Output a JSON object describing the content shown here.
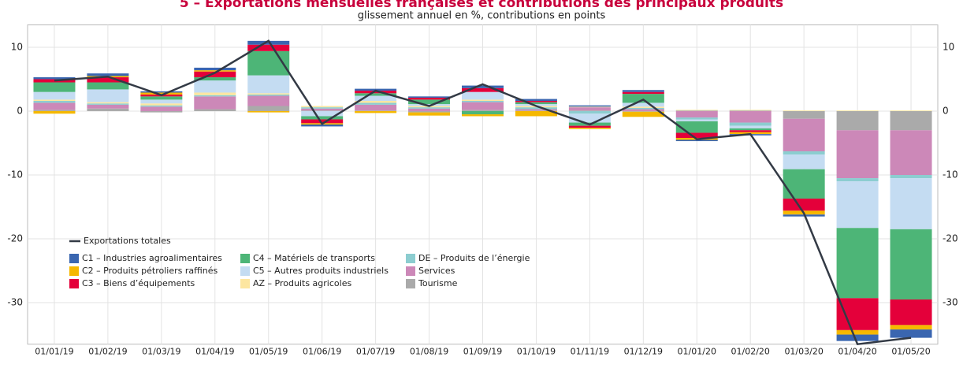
{
  "chart_data": {
    "type": "bar",
    "title": "5 – Exportations mensuelles françaises et contributions des principaux produits",
    "subtitle": "glissement annuel en %, contributions en points",
    "categories": [
      "01/01/19",
      "01/02/19",
      "01/03/19",
      "01/04/19",
      "01/05/19",
      "01/06/19",
      "01/07/19",
      "01/08/19",
      "01/09/19",
      "01/10/19",
      "01/11/19",
      "01/12/19",
      "01/01/20",
      "01/02/20",
      "01/03/20",
      "01/04/20",
      "01/05/20"
    ],
    "series": [
      {
        "name": "C1 – Industries agroalimentaires",
        "color": "#3a66b0",
        "values": [
          0.3,
          0.4,
          0.2,
          0.4,
          0.6,
          -0.3,
          0.3,
          0.2,
          0.4,
          0.3,
          0.2,
          0.3,
          -0.2,
          -0.2,
          -0.3,
          -1.0,
          -1.3
        ]
      },
      {
        "name": "C2 – Produits pétroliers raffinés",
        "color": "#f5b800",
        "values": [
          -0.4,
          0.2,
          0.3,
          0.2,
          -0.2,
          -0.2,
          -0.3,
          -0.5,
          -0.3,
          -0.8,
          -0.2,
          -0.8,
          -0.3,
          -0.3,
          -0.6,
          -0.7,
          -0.7
        ]
      },
      {
        "name": "C3 – Biens d’équipements",
        "color": "#e4003a",
        "values": [
          0.5,
          0.8,
          0.3,
          0.9,
          1.0,
          -0.6,
          0.4,
          0.3,
          0.6,
          0.2,
          -0.3,
          0.3,
          -0.8,
          -0.3,
          -1.9,
          -5.0,
          -4.0
        ]
      },
      {
        "name": "C4 – Matériels de transports",
        "color": "#4db577",
        "values": [
          1.5,
          1.1,
          0.5,
          0.5,
          3.8,
          -0.5,
          0.4,
          0.7,
          -0.5,
          0.3,
          -0.5,
          1.4,
          -1.8,
          -0.3,
          -4.6,
          -11.0,
          -11.0
        ]
      },
      {
        "name": "C5 – Autres produits industriels",
        "color": "#c4dcf2",
        "values": [
          1.2,
          2.0,
          0.6,
          1.9,
          2.8,
          -0.8,
          0.8,
          0.3,
          1.2,
          0.3,
          -1.4,
          0.6,
          -0.3,
          -0.4,
          -2.3,
          -7.3,
          -8.0
        ]
      },
      {
        "name": "AZ – Produits agricoles",
        "color": "#fde6a0",
        "values": [
          0.2,
          0.2,
          0.3,
          0.4,
          0.2,
          0.2,
          0.3,
          0.2,
          0.2,
          0.2,
          0.1,
          0.2,
          0.1,
          0.1,
          0.1,
          0.1,
          0.1
        ]
      },
      {
        "name": "DE – Produits de l’énergie",
        "color": "#8ccdd0",
        "values": [
          0.3,
          0.2,
          0.2,
          0.2,
          0.2,
          0.2,
          0.3,
          0.2,
          0.2,
          0.3,
          -0.4,
          0.2,
          -0.3,
          -0.5,
          -0.5,
          -0.5,
          -0.5
        ]
      },
      {
        "name": "Services",
        "color": "#cc88b8",
        "values": [
          1.1,
          0.6,
          0.7,
          2.0,
          1.6,
          0.3,
          0.9,
          0.4,
          1.2,
          0.2,
          0.5,
          0.3,
          -1.0,
          -1.8,
          -5.1,
          -7.5,
          -7.0
        ]
      },
      {
        "name": "Tourisme",
        "color": "#aaaaaa",
        "values": [
          0.2,
          0.4,
          -0.2,
          0.3,
          0.8,
          0.1,
          0.1,
          -0.2,
          0.2,
          0.1,
          0.1,
          -0.1,
          0.1,
          0.1,
          -1.2,
          -3.0,
          -3.0
        ]
      },
      {
        "name": "Exportations totales",
        "type": "line",
        "color": "#333a45",
        "values": [
          4.8,
          5.4,
          2.5,
          6.0,
          11.0,
          -2.0,
          3.2,
          0.8,
          4.2,
          0.8,
          -2.1,
          1.8,
          -4.4,
          -3.6,
          -16.0,
          -36.5,
          -35.5
        ]
      }
    ],
    "ylim": [
      -36.5,
      13.5
    ],
    "yticks": [
      -30,
      -20,
      -10,
      0,
      10
    ],
    "grid": true
  }
}
